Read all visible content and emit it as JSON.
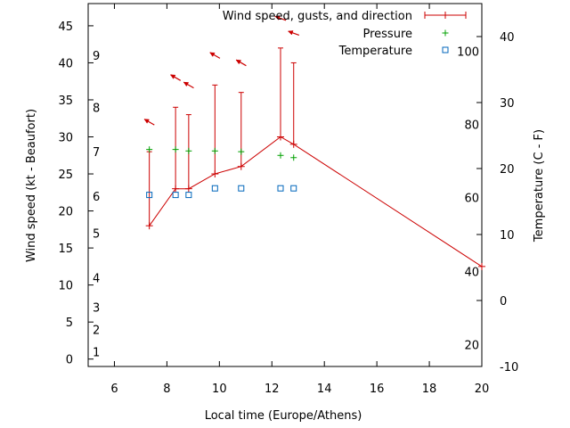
{
  "chart_data": {
    "type": "line",
    "xlabel": "Local time (Europe/Athens)",
    "ylabel": "Wind speed (kt - Beaufort)",
    "y2label": "Temperature (C - F)",
    "xlim": [
      5,
      20
    ],
    "ylim": [
      -1,
      48
    ],
    "y2lim": [
      -10,
      45
    ],
    "x_ticks": [
      "6",
      "8",
      "10",
      "12",
      "14",
      "16",
      "18",
      "20"
    ],
    "y_ticks": [
      "0",
      "5",
      "10",
      "15",
      "20",
      "25",
      "30",
      "35",
      "40",
      "45"
    ],
    "y2_ticks": [
      "-10",
      "0",
      "10",
      "20",
      "30",
      "40"
    ],
    "beaufort_labels": [
      {
        "label": "1",
        "y": 1
      },
      {
        "label": "2",
        "y": 4
      },
      {
        "label": "3",
        "y": 7
      },
      {
        "label": "4",
        "y": 11
      },
      {
        "label": "5",
        "y": 17
      },
      {
        "label": "6",
        "y": 22
      },
      {
        "label": "7",
        "y": 28
      },
      {
        "label": "8",
        "y": 34
      },
      {
        "label": "9",
        "y": 41
      }
    ],
    "fahrenheit_labels": [
      {
        "label": "20",
        "y": -6.7
      },
      {
        "label": "40",
        "y": 4.4
      },
      {
        "label": "60",
        "y": 15.6
      },
      {
        "label": "80",
        "y": 26.7
      },
      {
        "label": "100",
        "y": 37.8
      }
    ],
    "legend": {
      "position": "top-right"
    },
    "series": [
      {
        "name": "Wind speed, gusts, and direction",
        "color": "#cc0000",
        "x": [
          7.33,
          8.33,
          8.83,
          9.83,
          10.83,
          12.33,
          12.83,
          20.0
        ],
        "values": [
          18,
          23,
          23,
          25,
          26,
          30,
          29,
          12.5
        ],
        "gusts": [
          28,
          34,
          33,
          37,
          36,
          42,
          40,
          null
        ],
        "direction_arrows": [
          {
            "x": 7.33,
            "y": 32,
            "angle": 210
          },
          {
            "x": 8.33,
            "y": 38,
            "angle": 210
          },
          {
            "x": 8.83,
            "y": 37,
            "angle": 210
          },
          {
            "x": 9.83,
            "y": 41,
            "angle": 210
          },
          {
            "x": 10.83,
            "y": 40,
            "angle": 210
          },
          {
            "x": 12.33,
            "y": 46,
            "angle": 200
          },
          {
            "x": 12.83,
            "y": 44,
            "angle": 200
          }
        ]
      },
      {
        "name": "Pressure",
        "color": "#00a000",
        "x": [
          7.33,
          8.33,
          8.83,
          9.83,
          10.83,
          12.33,
          12.83
        ],
        "values": [
          28.3,
          28.3,
          28.1,
          28.1,
          28.0,
          27.5,
          27.2
        ]
      },
      {
        "name": "Temperature",
        "color": "#0066bb",
        "x": [
          7.33,
          8.33,
          8.83,
          9.83,
          10.83,
          12.33,
          12.83
        ],
        "values": [
          16,
          16,
          16,
          17,
          17,
          17,
          17
        ]
      }
    ]
  }
}
